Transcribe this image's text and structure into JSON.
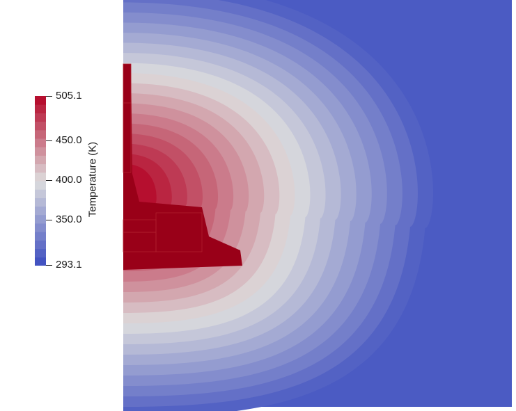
{
  "colorbar": {
    "title": "Temperature (K)",
    "range": [
      293.1,
      505.1
    ],
    "ticks": [
      {
        "value": 505.1,
        "label": "505.1"
      },
      {
        "value": 450.0,
        "label": "450.0"
      },
      {
        "value": 400.0,
        "label": "400.0"
      },
      {
        "value": 350.0,
        "label": "350.0"
      },
      {
        "value": 293.1,
        "label": "293.1"
      }
    ],
    "colors": {
      "low": "#3b4cc0",
      "mid": "#dddddd",
      "high": "#b40426",
      "max": "#990018"
    }
  }
}
